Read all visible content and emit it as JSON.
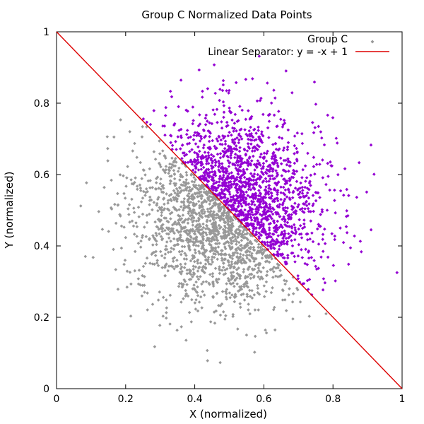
{
  "chart_data": {
    "type": "scatter",
    "title": "Group C Normalized Data Points",
    "xlabel": "X (normalized)",
    "ylabel": "Y (normalized)",
    "xlim": [
      0,
      1
    ],
    "ylim": [
      0,
      1
    ],
    "xticks": [
      "0",
      "0.2",
      "0.4",
      "0.6",
      "0.8",
      "1"
    ],
    "yticks": [
      "0",
      "0.2",
      "0.4",
      "0.6",
      "0.8",
      "1"
    ],
    "grid": false,
    "legend_position": "top-right",
    "series": [
      {
        "name": "Group C",
        "marker": "diamond",
        "color_below_line": "#999999",
        "color_above_line": "#9400d3",
        "center": [
          0.5,
          0.5
        ],
        "spread_std": [
          0.13,
          0.13
        ],
        "approx_point_count": 3000
      },
      {
        "name": "Linear Separator: y = -x + 1",
        "type": "line",
        "color": "#dd0000",
        "x": [
          0,
          1
        ],
        "y": [
          1,
          0
        ]
      }
    ]
  },
  "colors": {
    "below": "#999999",
    "above": "#9400d3",
    "line": "#dd0000"
  }
}
